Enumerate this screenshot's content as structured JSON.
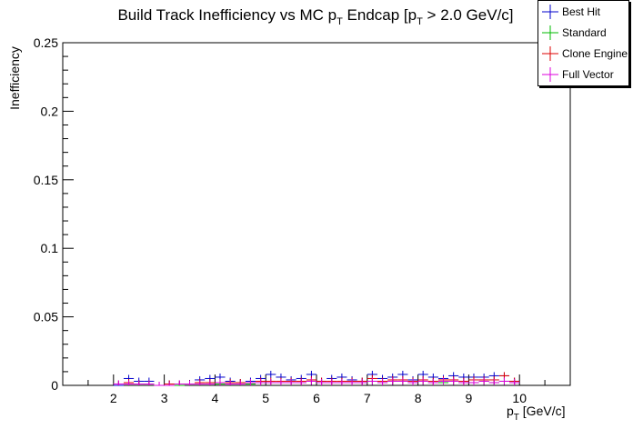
{
  "chart_data": {
    "type": "scatter",
    "title": {
      "prefix": "Build Track Inefficiency vs MC p",
      "sub1": "T",
      "middle": " Endcap [p",
      "sub2": "T",
      "suffix": " > 2.0 GeV/c]"
    },
    "xlabel": {
      "main": "p",
      "sub": "T",
      "rest": " [GeV/c]"
    },
    "ylabel": "Inefficiency",
    "xlim": [
      1.0,
      11.0
    ],
    "ylim": [
      0,
      0.25
    ],
    "x_ticks": [
      "2",
      "3",
      "4",
      "5",
      "6",
      "7",
      "8",
      "9",
      "10"
    ],
    "y_ticks": [
      "0",
      "0.05",
      "0.1",
      "0.15",
      "0.2",
      "0.25"
    ],
    "bin_width": 0.2,
    "grid": false,
    "legend_position": "top-right",
    "series": [
      {
        "name": "Best Hit",
        "color": "#0000cc",
        "x": [
          2.1,
          2.3,
          2.5,
          2.7,
          2.9,
          3.1,
          3.3,
          3.5,
          3.7,
          3.9,
          4.1,
          4.3,
          4.5,
          4.7,
          4.9,
          5.1,
          5.3,
          5.5,
          5.7,
          5.9,
          6.1,
          6.3,
          6.5,
          6.7,
          6.9,
          7.1,
          7.3,
          7.5,
          7.7,
          7.9,
          8.1,
          8.3,
          8.5,
          8.7,
          8.9,
          9.1,
          9.3,
          9.5,
          9.7,
          9.9
        ],
        "values": [
          0.0,
          0.005,
          0.003,
          0.003,
          0.0,
          0.001,
          0.001,
          0.001,
          0.004,
          0.005,
          0.006,
          0.003,
          0.002,
          0.003,
          0.005,
          0.008,
          0.006,
          0.004,
          0.005,
          0.008,
          0.003,
          0.005,
          0.006,
          0.004,
          0.003,
          0.008,
          0.005,
          0.006,
          0.008,
          0.004,
          0.008,
          0.006,
          0.005,
          0.007,
          0.006,
          0.006,
          0.006,
          0.007,
          0.007,
          0.003
        ]
      },
      {
        "name": "Standard",
        "color": "#00bb00",
        "x": [
          2.1,
          2.3,
          2.5,
          2.7,
          2.9,
          3.1,
          3.3,
          3.5,
          3.7,
          3.9,
          4.1,
          4.3,
          4.5,
          4.7,
          4.9,
          5.1,
          5.3,
          5.5,
          5.7,
          5.9,
          6.1,
          6.3,
          6.5,
          6.7,
          6.9,
          7.1,
          7.3,
          7.5,
          7.7,
          7.9,
          8.1,
          8.3,
          8.5,
          8.7,
          8.9,
          9.1,
          9.3,
          9.5,
          9.7,
          9.9
        ],
        "values": [
          0.001,
          0.001,
          0.001,
          0.001,
          0.0,
          0.0,
          0.0,
          0.001,
          0.001,
          0.001,
          0.001,
          0.001,
          0.001,
          0.001,
          0.002,
          0.002,
          0.002,
          0.002,
          0.002,
          0.003,
          0.002,
          0.002,
          0.002,
          0.002,
          0.002,
          0.003,
          0.002,
          0.003,
          0.003,
          0.002,
          0.003,
          0.002,
          0.002,
          0.003,
          0.002,
          0.002,
          0.003,
          0.002,
          0.003,
          0.002
        ]
      },
      {
        "name": "Clone Engine",
        "color": "#dd0000",
        "x": [
          2.1,
          2.3,
          2.5,
          2.7,
          2.9,
          3.1,
          3.3,
          3.5,
          3.7,
          3.9,
          4.1,
          4.3,
          4.5,
          4.7,
          4.9,
          5.1,
          5.3,
          5.5,
          5.7,
          5.9,
          6.1,
          6.3,
          6.5,
          6.7,
          6.9,
          7.1,
          7.3,
          7.5,
          7.7,
          7.9,
          8.1,
          8.3,
          8.5,
          8.7,
          8.9,
          9.1,
          9.3,
          9.5,
          9.7,
          9.9
        ],
        "values": [
          0.001,
          0.002,
          0.001,
          0.001,
          0.0,
          0.001,
          0.001,
          0.001,
          0.002,
          0.002,
          0.002,
          0.002,
          0.002,
          0.002,
          0.003,
          0.003,
          0.003,
          0.003,
          0.003,
          0.004,
          0.003,
          0.003,
          0.003,
          0.003,
          0.003,
          0.005,
          0.003,
          0.004,
          0.004,
          0.003,
          0.004,
          0.003,
          0.004,
          0.004,
          0.003,
          0.004,
          0.004,
          0.004,
          0.007,
          0.003
        ]
      },
      {
        "name": "Full Vector",
        "color": "#dd00dd",
        "x": [
          2.1,
          2.3,
          2.5,
          2.7,
          2.9,
          3.1,
          3.3,
          3.5,
          3.7,
          3.9,
          4.1,
          4.3,
          4.5,
          4.7,
          4.9,
          5.1,
          5.3,
          5.5,
          5.7,
          5.9,
          6.1,
          6.3,
          6.5,
          6.7,
          6.9,
          7.1,
          7.3,
          7.5,
          7.7,
          7.9,
          8.1,
          8.3,
          8.5,
          8.7,
          8.9,
          9.1,
          9.3,
          9.5,
          9.7,
          9.9
        ],
        "values": [
          0.001,
          0.001,
          0.001,
          0.001,
          0.0,
          0.0,
          0.001,
          0.001,
          0.001,
          0.001,
          0.002,
          0.001,
          0.001,
          0.002,
          0.002,
          0.002,
          0.002,
          0.002,
          0.002,
          0.003,
          0.002,
          0.002,
          0.002,
          0.002,
          0.002,
          0.003,
          0.002,
          0.003,
          0.003,
          0.002,
          0.003,
          0.002,
          0.003,
          0.003,
          0.002,
          0.002,
          0.003,
          0.002,
          0.003,
          0.002
        ]
      }
    ]
  }
}
